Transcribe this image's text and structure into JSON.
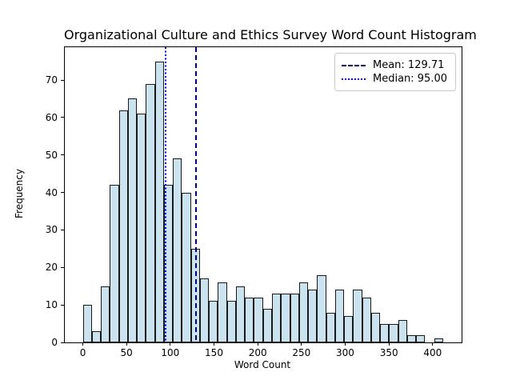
{
  "chart_data": {
    "type": "histogram",
    "title": "Organizational Culture and Ethics Survey Word Count Histogram",
    "xlabel": "Word Count",
    "ylabel": "Frequency",
    "bins": {
      "start": 0,
      "width": 10.3,
      "frequencies": [
        10,
        3,
        15,
        42,
        62,
        65,
        61,
        69,
        75,
        42,
        49,
        40,
        25,
        17,
        11,
        16,
        11,
        15,
        12,
        12,
        9,
        13,
        13,
        13,
        16,
        14,
        18,
        8,
        14,
        7,
        14,
        12,
        8,
        5,
        5,
        6,
        2,
        2,
        0,
        1
      ]
    },
    "xticks": [
      0,
      50,
      100,
      150,
      200,
      250,
      300,
      350,
      400
    ],
    "yticks": [
      0,
      10,
      20,
      30,
      40,
      50,
      60,
      70
    ],
    "xlim": [
      -20.6,
      433.1
    ],
    "ylim": [
      0,
      78.75
    ],
    "grid": false,
    "bar_fill_color": "#cbe3ee",
    "bar_edge_color": "#1a1a1a",
    "mean_line": {
      "value": 129.71,
      "color": "#000080",
      "style": "dashed",
      "legend_label": "Mean: 129.71"
    },
    "median_line": {
      "value": 95.0,
      "color": "#0000ff",
      "style": "dotted",
      "legend_label": "Median: 95.00"
    },
    "legend_position": "upper right"
  }
}
